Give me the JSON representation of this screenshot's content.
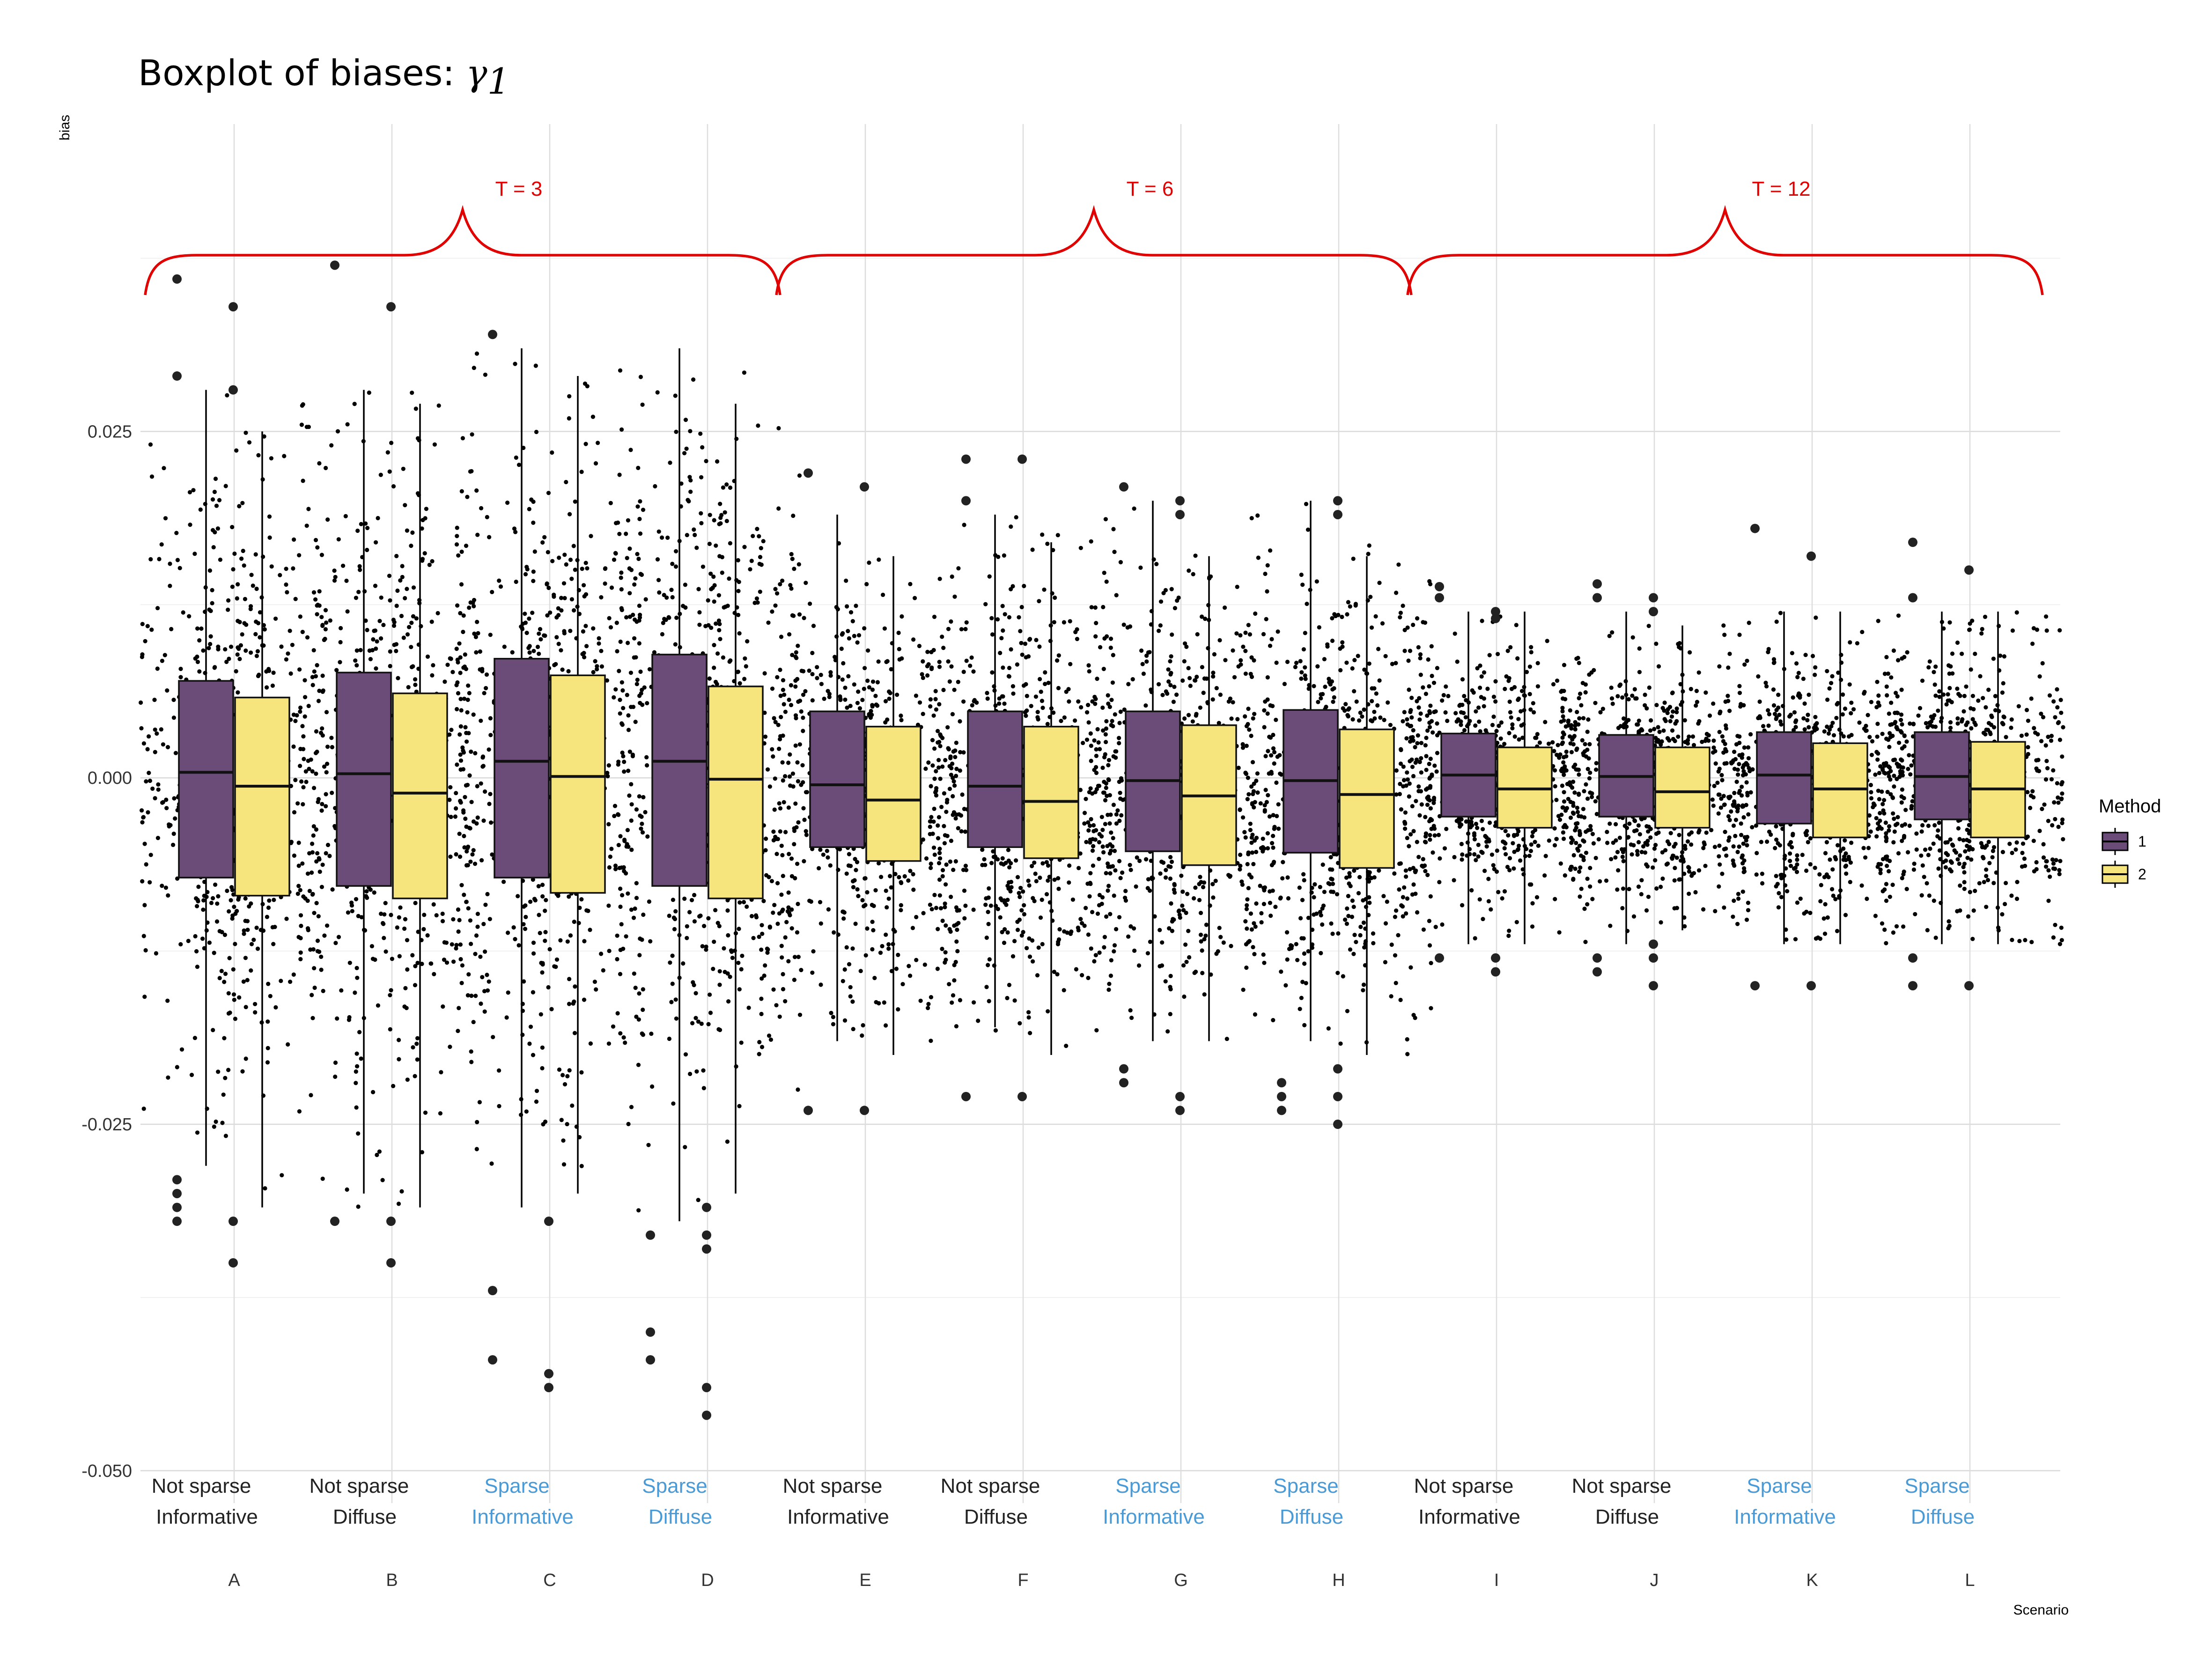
{
  "chart_data": {
    "type": "boxplot",
    "title": "Boxplot of biases: ",
    "title_symbol": "γ",
    "title_subscript": "1",
    "xlabel": "Scenario",
    "ylabel": "bias",
    "ylim": [
      -0.052,
      0.046
    ],
    "yticks": [
      -0.05,
      -0.025,
      0.0,
      0.025
    ],
    "ytick_labels": [
      "-0.050",
      "-0.025",
      "0.000",
      "0.025"
    ],
    "categories": [
      "A",
      "B",
      "C",
      "D",
      "E",
      "F",
      "G",
      "H",
      "I",
      "J",
      "K",
      "L"
    ],
    "scenario_line1": [
      "Not sparse",
      "Not sparse",
      "Sparse",
      "Sparse",
      "Not sparse",
      "Not sparse",
      "Sparse",
      "Sparse",
      "Not sparse",
      "Not sparse",
      "Sparse",
      "Sparse"
    ],
    "scenario_line2": [
      "Informative",
      "Diffuse",
      "Informative",
      "Diffuse",
      "Informative",
      "Diffuse",
      "Informative",
      "Diffuse",
      "Informative",
      "Diffuse",
      "Informative",
      "Diffuse"
    ],
    "groups": [
      {
        "label": "T = 3",
        "from": 0,
        "to": 3
      },
      {
        "label": "T = 6",
        "from": 4,
        "to": 7
      },
      {
        "label": "T = 12",
        "from": 8,
        "to": 11
      }
    ],
    "legend": {
      "title": "Method",
      "entries": [
        "1",
        "2"
      ]
    },
    "colors": {
      "method1": "#6b4c78",
      "method2": "#f5e57c",
      "sparse_label": "#4a9ad6",
      "nonsparse_label": "#222222",
      "bracket": "#e00000"
    },
    "series": [
      {
        "name": "1",
        "boxes": [
          {
            "q1": -0.0072,
            "median": 0.0004,
            "q3": 0.007,
            "wlo": -0.028,
            "whi": 0.028,
            "outliers": [
              -0.029,
              -0.03,
              -0.031,
              -0.032,
              0.029,
              0.036
            ]
          },
          {
            "q1": -0.0078,
            "median": 0.0003,
            "q3": 0.0076,
            "wlo": -0.03,
            "whi": 0.028,
            "outliers": [
              -0.032,
              0.037
            ]
          },
          {
            "q1": -0.0072,
            "median": 0.0012,
            "q3": 0.0086,
            "wlo": -0.031,
            "whi": 0.031,
            "outliers": [
              -0.037,
              -0.042,
              0.032
            ]
          },
          {
            "q1": -0.0078,
            "median": 0.0012,
            "q3": 0.0089,
            "wlo": -0.032,
            "whi": 0.031,
            "outliers": [
              -0.033,
              -0.04,
              -0.042
            ]
          },
          {
            "q1": -0.005,
            "median": -0.0005,
            "q3": 0.0048,
            "wlo": -0.019,
            "whi": 0.019,
            "outliers": [
              -0.024,
              0.022
            ]
          },
          {
            "q1": -0.005,
            "median": -0.0006,
            "q3": 0.0048,
            "wlo": -0.018,
            "whi": 0.019,
            "outliers": [
              -0.023,
              0.02,
              0.023
            ]
          },
          {
            "q1": -0.0053,
            "median": -0.0002,
            "q3": 0.0048,
            "wlo": -0.019,
            "whi": 0.02,
            "outliers": [
              -0.021,
              -0.022,
              0.021
            ]
          },
          {
            "q1": -0.0054,
            "median": -0.0002,
            "q3": 0.0049,
            "wlo": -0.019,
            "whi": 0.02,
            "outliers": [
              -0.022,
              -0.023,
              -0.024
            ]
          },
          {
            "q1": -0.0028,
            "median": 0.0002,
            "q3": 0.0032,
            "wlo": -0.012,
            "whi": 0.012,
            "outliers": [
              -0.013,
              0.013,
              0.0138
            ]
          },
          {
            "q1": -0.0028,
            "median": 0.0001,
            "q3": 0.0031,
            "wlo": -0.012,
            "whi": 0.012,
            "outliers": [
              -0.013,
              -0.014,
              0.013,
              0.014
            ]
          },
          {
            "q1": -0.0033,
            "median": 0.0002,
            "q3": 0.0033,
            "wlo": -0.012,
            "whi": 0.012,
            "outliers": [
              -0.015,
              0.018
            ]
          },
          {
            "q1": -0.003,
            "median": 0.0001,
            "q3": 0.0033,
            "wlo": -0.012,
            "whi": 0.012,
            "outliers": [
              -0.013,
              -0.015,
              0.013,
              0.017
            ]
          }
        ]
      },
      {
        "name": "2",
        "boxes": [
          {
            "q1": -0.0085,
            "median": -0.0006,
            "q3": 0.0058,
            "wlo": -0.031,
            "whi": 0.025,
            "outliers": [
              -0.032,
              -0.035,
              0.028,
              0.034
            ]
          },
          {
            "q1": -0.0087,
            "median": -0.0011,
            "q3": 0.0061,
            "wlo": -0.031,
            "whi": 0.027,
            "outliers": [
              -0.032,
              -0.035,
              0.034
            ]
          },
          {
            "q1": -0.0083,
            "median": 0.0001,
            "q3": 0.0074,
            "wlo": -0.03,
            "whi": 0.029,
            "outliers": [
              -0.032,
              -0.043,
              -0.044
            ]
          },
          {
            "q1": -0.0087,
            "median": -0.0001,
            "q3": 0.0066,
            "wlo": -0.03,
            "whi": 0.027,
            "outliers": [
              -0.031,
              -0.033,
              -0.034,
              -0.044,
              -0.046
            ]
          },
          {
            "q1": -0.006,
            "median": -0.0016,
            "q3": 0.0037,
            "wlo": -0.02,
            "whi": 0.016,
            "outliers": [
              -0.024,
              0.021
            ]
          },
          {
            "q1": -0.0058,
            "median": -0.0017,
            "q3": 0.0037,
            "wlo": -0.02,
            "whi": 0.017,
            "outliers": [
              -0.023,
              0.023
            ]
          },
          {
            "q1": -0.0063,
            "median": -0.0013,
            "q3": 0.0038,
            "wlo": -0.019,
            "whi": 0.016,
            "outliers": [
              -0.023,
              -0.024,
              0.019,
              0.02
            ]
          },
          {
            "q1": -0.0065,
            "median": -0.0012,
            "q3": 0.0035,
            "wlo": -0.02,
            "whi": 0.016,
            "outliers": [
              -0.021,
              -0.023,
              -0.025,
              0.019,
              0.02
            ]
          },
          {
            "q1": -0.0036,
            "median": -0.0008,
            "q3": 0.0022,
            "wlo": -0.012,
            "whi": 0.012,
            "outliers": [
              -0.013,
              -0.014,
              0.0115,
              0.012
            ]
          },
          {
            "q1": -0.0036,
            "median": -0.001,
            "q3": 0.0022,
            "wlo": -0.011,
            "whi": 0.011,
            "outliers": [
              -0.012,
              -0.013,
              -0.015,
              0.012,
              0.013
            ]
          },
          {
            "q1": -0.0043,
            "median": -0.0008,
            "q3": 0.0025,
            "wlo": -0.012,
            "whi": 0.012,
            "outliers": [
              -0.015,
              0.016
            ]
          },
          {
            "q1": -0.0043,
            "median": -0.0008,
            "q3": 0.0026,
            "wlo": -0.012,
            "whi": 0.012,
            "outliers": [
              -0.015,
              0.015
            ]
          }
        ]
      }
    ]
  }
}
